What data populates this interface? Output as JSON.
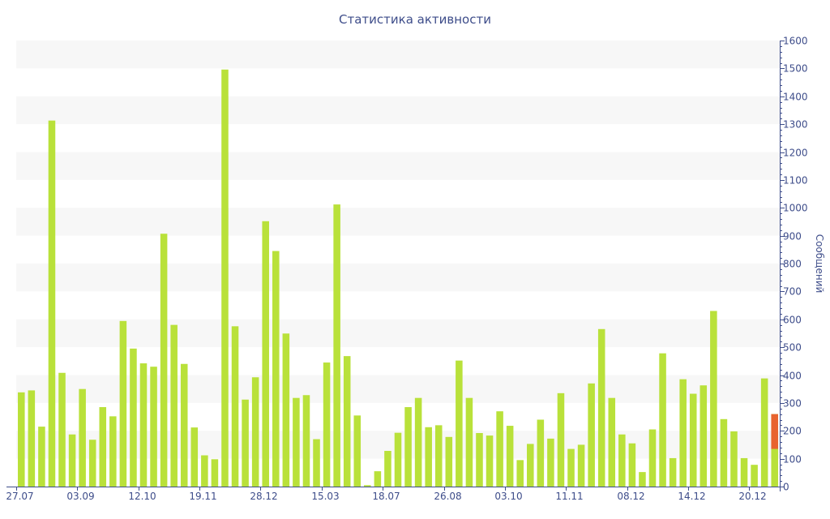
{
  "chart_data": {
    "type": "bar",
    "title": "Статистика активности",
    "ylabel": "Сообщений",
    "ylim": [
      0,
      1600
    ],
    "yticks": [
      0,
      100,
      200,
      300,
      400,
      500,
      600,
      700,
      800,
      900,
      1000,
      1100,
      1200,
      1300,
      1400,
      1500,
      1600
    ],
    "y_axis_side": "right",
    "xtick_labels": [
      "27.07",
      "03.09",
      "12.10",
      "19.11",
      "28.12",
      "15.03",
      "18.07",
      "26.08",
      "03.10",
      "11.11",
      "08.12",
      "14.12",
      "20.12"
    ],
    "xtick_label_bar_index": [
      0,
      6,
      12,
      18,
      24,
      30,
      36,
      42,
      48,
      54,
      60,
      66,
      72
    ],
    "colors": {
      "bar": "#b9e13a",
      "highlight": "#e8632f",
      "band": "#f7f7f7",
      "axis": "#3e4d8a"
    },
    "values": [
      338,
      345,
      215,
      1313,
      408,
      187,
      350,
      168,
      285,
      252,
      594,
      495,
      442,
      430,
      907,
      580,
      440,
      212,
      112,
      98,
      1496,
      575,
      312,
      392,
      952,
      845,
      549,
      318,
      328,
      170,
      445,
      1012,
      468,
      255,
      5,
      55,
      128,
      193,
      285,
      318,
      213,
      220,
      178,
      452,
      318,
      192,
      183,
      270,
      218,
      95,
      153,
      240,
      172,
      335,
      135,
      150,
      370,
      565,
      318,
      187,
      155,
      52,
      205,
      478,
      102,
      385,
      333,
      363,
      630,
      242,
      198,
      102,
      78,
      388,
      260
    ],
    "highlight": {
      "bar_index": 74,
      "value": 260,
      "lower_value": 135
    }
  }
}
